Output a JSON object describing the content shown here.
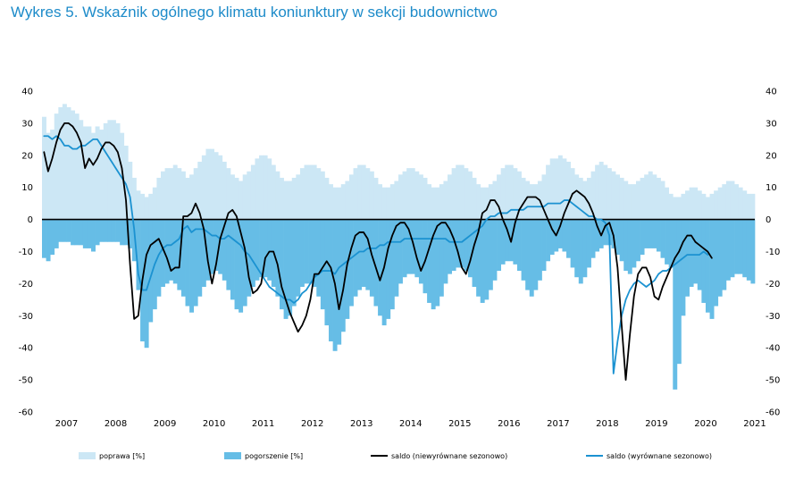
{
  "title": "Wykres 5. Wskaźnik ogólnego klimatu koniunktury w sekcji budownictwo",
  "chart_data": {
    "type": "bar+line",
    "title": "Wykres 5. Wskaźnik ogólnego klimatu koniunktury w sekcji budownictwo",
    "ylim": [
      -60,
      40
    ],
    "yticks": [
      40,
      30,
      20,
      10,
      0,
      -10,
      -20,
      -30,
      -40,
      -50,
      -60
    ],
    "years": [
      "2007",
      "2008",
      "2009",
      "2010",
      "2011",
      "2012",
      "2013",
      "2014",
      "2015",
      "2016",
      "2017",
      "2018",
      "2019",
      "2020",
      "2021"
    ],
    "start": "2007-01",
    "frequency": "monthly",
    "colors": {
      "poprawa": "#cce7f5",
      "pogorszenie": "#66bde6",
      "saldo_nsa": "#000000",
      "saldo_sa": "#1b92d1",
      "title": "#1d8bc9"
    },
    "legend": [
      {
        "key": "poprawa",
        "label": "poprawa [%]",
        "kind": "bar"
      },
      {
        "key": "pogorszenie",
        "label": "pogorszenie [%]",
        "kind": "bar"
      },
      {
        "key": "saldo_nsa",
        "label": "saldo (niewyrównane sezonowo)",
        "kind": "line"
      },
      {
        "key": "saldo_sa",
        "label": "saldo (wyrównane sezonowo)",
        "kind": "line"
      }
    ],
    "series": [
      {
        "name": "poprawa [%]",
        "key": "poprawa",
        "values": [
          32,
          27,
          28,
          33,
          35,
          36,
          35,
          34,
          33,
          31,
          29,
          29,
          27,
          29,
          28,
          30,
          31,
          31,
          30,
          27,
          23,
          18,
          13,
          9,
          8,
          7,
          8,
          10,
          13,
          15,
          16,
          16,
          17,
          16,
          15,
          13,
          14,
          16,
          18,
          20,
          22,
          22,
          21,
          20,
          18,
          16,
          14,
          13,
          12,
          14,
          15,
          17,
          19,
          20,
          20,
          19,
          17,
          15,
          13,
          12,
          12,
          13,
          14,
          16,
          17,
          17,
          17,
          16,
          15,
          13,
          11,
          10,
          10,
          11,
          12,
          14,
          16,
          17,
          17,
          16,
          15,
          13,
          11,
          10,
          10,
          11,
          12,
          14,
          15,
          16,
          16,
          15,
          14,
          13,
          11,
          10,
          10,
          11,
          12,
          14,
          16,
          17,
          17,
          16,
          15,
          13,
          11,
          10,
          10,
          11,
          12,
          14,
          16,
          17,
          17,
          16,
          15,
          13,
          12,
          11,
          11,
          12,
          14,
          17,
          19,
          19,
          20,
          19,
          18,
          16,
          14,
          13,
          12,
          13,
          15,
          17,
          18,
          17,
          16,
          15,
          14,
          13,
          12,
          11,
          11,
          12,
          13,
          14,
          15,
          14,
          13,
          12,
          10,
          8,
          7,
          7,
          8,
          9,
          10,
          10,
          9,
          8,
          7,
          8,
          9,
          10,
          11,
          12,
          12,
          11,
          10,
          9,
          8,
          8
        ]
      },
      {
        "name": "pogorszenie [%]",
        "key": "pogorszenie",
        "values": [
          -12,
          -13,
          -11,
          -9,
          -7,
          -7,
          -7,
          -8,
          -8,
          -8,
          -9,
          -9,
          -10,
          -8,
          -7,
          -7,
          -7,
          -7,
          -7,
          -8,
          -8,
          -9,
          -13,
          -22,
          -38,
          -40,
          -32,
          -28,
          -24,
          -21,
          -20,
          -19,
          -20,
          -22,
          -24,
          -27,
          -29,
          -27,
          -24,
          -21,
          -19,
          -17,
          -16,
          -17,
          -19,
          -22,
          -25,
          -28,
          -29,
          -27,
          -24,
          -21,
          -19,
          -18,
          -18,
          -19,
          -21,
          -24,
          -28,
          -31,
          -30,
          -27,
          -24,
          -21,
          -20,
          -20,
          -21,
          -24,
          -28,
          -33,
          -38,
          -41,
          -39,
          -35,
          -31,
          -27,
          -24,
          -22,
          -21,
          -22,
          -24,
          -27,
          -30,
          -33,
          -31,
          -28,
          -24,
          -20,
          -18,
          -17,
          -17,
          -18,
          -20,
          -23,
          -26,
          -28,
          -27,
          -24,
          -20,
          -17,
          -16,
          -15,
          -15,
          -16,
          -18,
          -21,
          -24,
          -26,
          -25,
          -22,
          -19,
          -16,
          -14,
          -13,
          -13,
          -14,
          -16,
          -19,
          -22,
          -24,
          -22,
          -19,
          -16,
          -13,
          -11,
          -10,
          -9,
          -10,
          -12,
          -15,
          -18,
          -20,
          -18,
          -15,
          -12,
          -10,
          -9,
          -8,
          -8,
          -9,
          -11,
          -13,
          -16,
          -17,
          -15,
          -13,
          -11,
          -9,
          -9,
          -9,
          -10,
          -12,
          -14,
          -15,
          -53,
          -45,
          -30,
          -24,
          -21,
          -20,
          -22,
          -26,
          -29,
          -31,
          -27,
          -24,
          -22,
          -19,
          -18,
          -17,
          -17,
          -18,
          -19,
          -20
        ]
      },
      {
        "name": "saldo (niewyrównane sezonowo)",
        "key": "saldo_nsa",
        "values": [
          21,
          15,
          19,
          24,
          28,
          30,
          30,
          29,
          27,
          24,
          16,
          19,
          17,
          19,
          22,
          24,
          24,
          23,
          21,
          16,
          6,
          -14,
          -31,
          -30,
          -19,
          -11,
          -8,
          -7,
          -6,
          -9,
          -12,
          -16,
          -15,
          -15,
          1,
          1,
          2,
          5,
          2,
          -3,
          -13,
          -20,
          -14,
          -6,
          -2,
          2,
          3,
          1,
          -4,
          -9,
          -18,
          -23,
          -22,
          -20,
          -12,
          -10,
          -10,
          -14,
          -21,
          -25,
          -29,
          -32,
          -35,
          -33,
          -30,
          -25,
          -17,
          -17,
          -15,
          -13,
          -15,
          -20,
          -28,
          -22,
          -14,
          -9,
          -5,
          -4,
          -4,
          -6,
          -11,
          -15,
          -19,
          -15,
          -9,
          -5,
          -2,
          -1,
          -1,
          -3,
          -7,
          -12,
          -16,
          -13,
          -9,
          -5,
          -2,
          -1,
          -1,
          -3,
          -6,
          -10,
          -15,
          -17,
          -13,
          -8,
          -4,
          2,
          3,
          6,
          6,
          4,
          0,
          -3,
          -7,
          -1,
          3,
          5,
          7,
          7,
          7,
          6,
          3,
          0,
          -3,
          -5,
          -2,
          2,
          5,
          8,
          9,
          8,
          7,
          5,
          2,
          -2,
          -5,
          -2,
          -1,
          -5,
          -15,
          -33,
          -50,
          -36,
          -24,
          -17,
          -15,
          -15,
          -18,
          -24,
          -25,
          -21,
          -18,
          -15,
          -12,
          -10,
          -7,
          -5,
          -5,
          -7,
          -8,
          -9,
          -10,
          -12
        ]
      },
      {
        "name": "saldo (wyrównane sezonowo)",
        "key": "saldo_sa",
        "values": [
          26,
          26,
          25,
          26,
          25,
          23,
          23,
          22,
          22,
          23,
          23,
          24,
          25,
          25,
          23,
          21,
          19,
          17,
          15,
          13,
          11,
          7,
          -3,
          -17,
          -22,
          -22,
          -18,
          -14,
          -11,
          -9,
          -8,
          -8,
          -7,
          -6,
          -3,
          -2,
          -4,
          -3,
          -3,
          -3,
          -4,
          -5,
          -5,
          -6,
          -6,
          -5,
          -6,
          -7,
          -8,
          -10,
          -11,
          -13,
          -15,
          -17,
          -19,
          -21,
          -22,
          -23,
          -24,
          -25,
          -25,
          -26,
          -25,
          -23,
          -22,
          -20,
          -18,
          -17,
          -16,
          -16,
          -16,
          -17,
          -15,
          -14,
          -13,
          -12,
          -11,
          -10,
          -10,
          -9,
          -9,
          -9,
          -8,
          -8,
          -7,
          -7,
          -7,
          -7,
          -6,
          -6,
          -6,
          -6,
          -6,
          -6,
          -6,
          -6,
          -6,
          -6,
          -6,
          -7,
          -7,
          -7,
          -7,
          -6,
          -5,
          -4,
          -3,
          -2,
          0,
          1,
          1,
          2,
          2,
          2,
          3,
          3,
          3,
          3,
          4,
          4,
          4,
          4,
          4,
          5,
          5,
          5,
          5,
          6,
          6,
          5,
          4,
          3,
          2,
          1,
          1,
          0,
          0,
          -1,
          -5,
          -48,
          -38,
          -30,
          -25,
          -22,
          -20,
          -19,
          -20,
          -21,
          -20,
          -19,
          -17,
          -16,
          -16,
          -15,
          -14,
          -13,
          -12,
          -11,
          -11,
          -11,
          -11,
          -10,
          -11
        ]
      }
    ]
  }
}
